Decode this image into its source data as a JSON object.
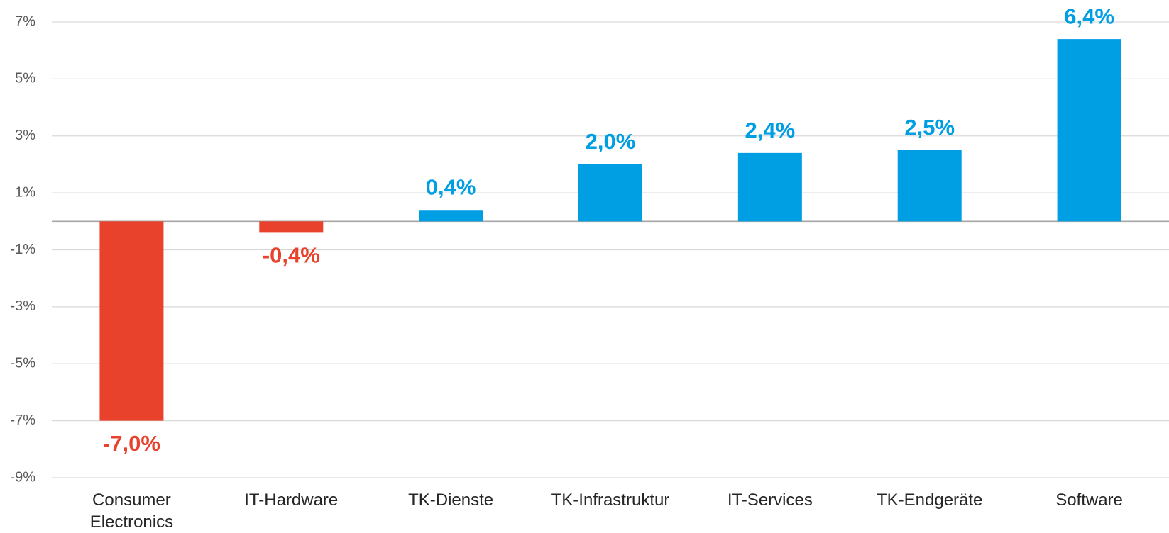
{
  "chart_data": {
    "type": "bar",
    "categories": [
      "Consumer Electronics",
      "IT-Hardware",
      "TK-Dienste",
      "TK-Infrastruktur",
      "IT-Services",
      "TK-Endgeräte",
      "Software"
    ],
    "values": [
      -7.0,
      -0.4,
      0.4,
      2.0,
      2.4,
      2.5,
      6.4
    ],
    "value_labels": [
      "-7,0%",
      "-0,4%",
      "0,4%",
      "2,0%",
      "2,4%",
      "2,5%",
      "6,4%"
    ],
    "colors": [
      "#e8412c",
      "#e8412c",
      "#009ee3",
      "#009ee3",
      "#009ee3",
      "#009ee3",
      "#009ee3"
    ],
    "ylim": [
      -9,
      7
    ],
    "yticks": [
      {
        "value": 7,
        "label": "7%"
      },
      {
        "value": 5,
        "label": "5%"
      },
      {
        "value": 3,
        "label": "3%"
      },
      {
        "value": 1,
        "label": "1%"
      },
      {
        "value": -1,
        "label": "-1%"
      },
      {
        "value": -3,
        "label": "-3%"
      },
      {
        "value": -5,
        "label": "-5%"
      },
      {
        "value": -7,
        "label": "-7%"
      },
      {
        "value": -9,
        "label": "-9%"
      }
    ],
    "grid": true
  }
}
